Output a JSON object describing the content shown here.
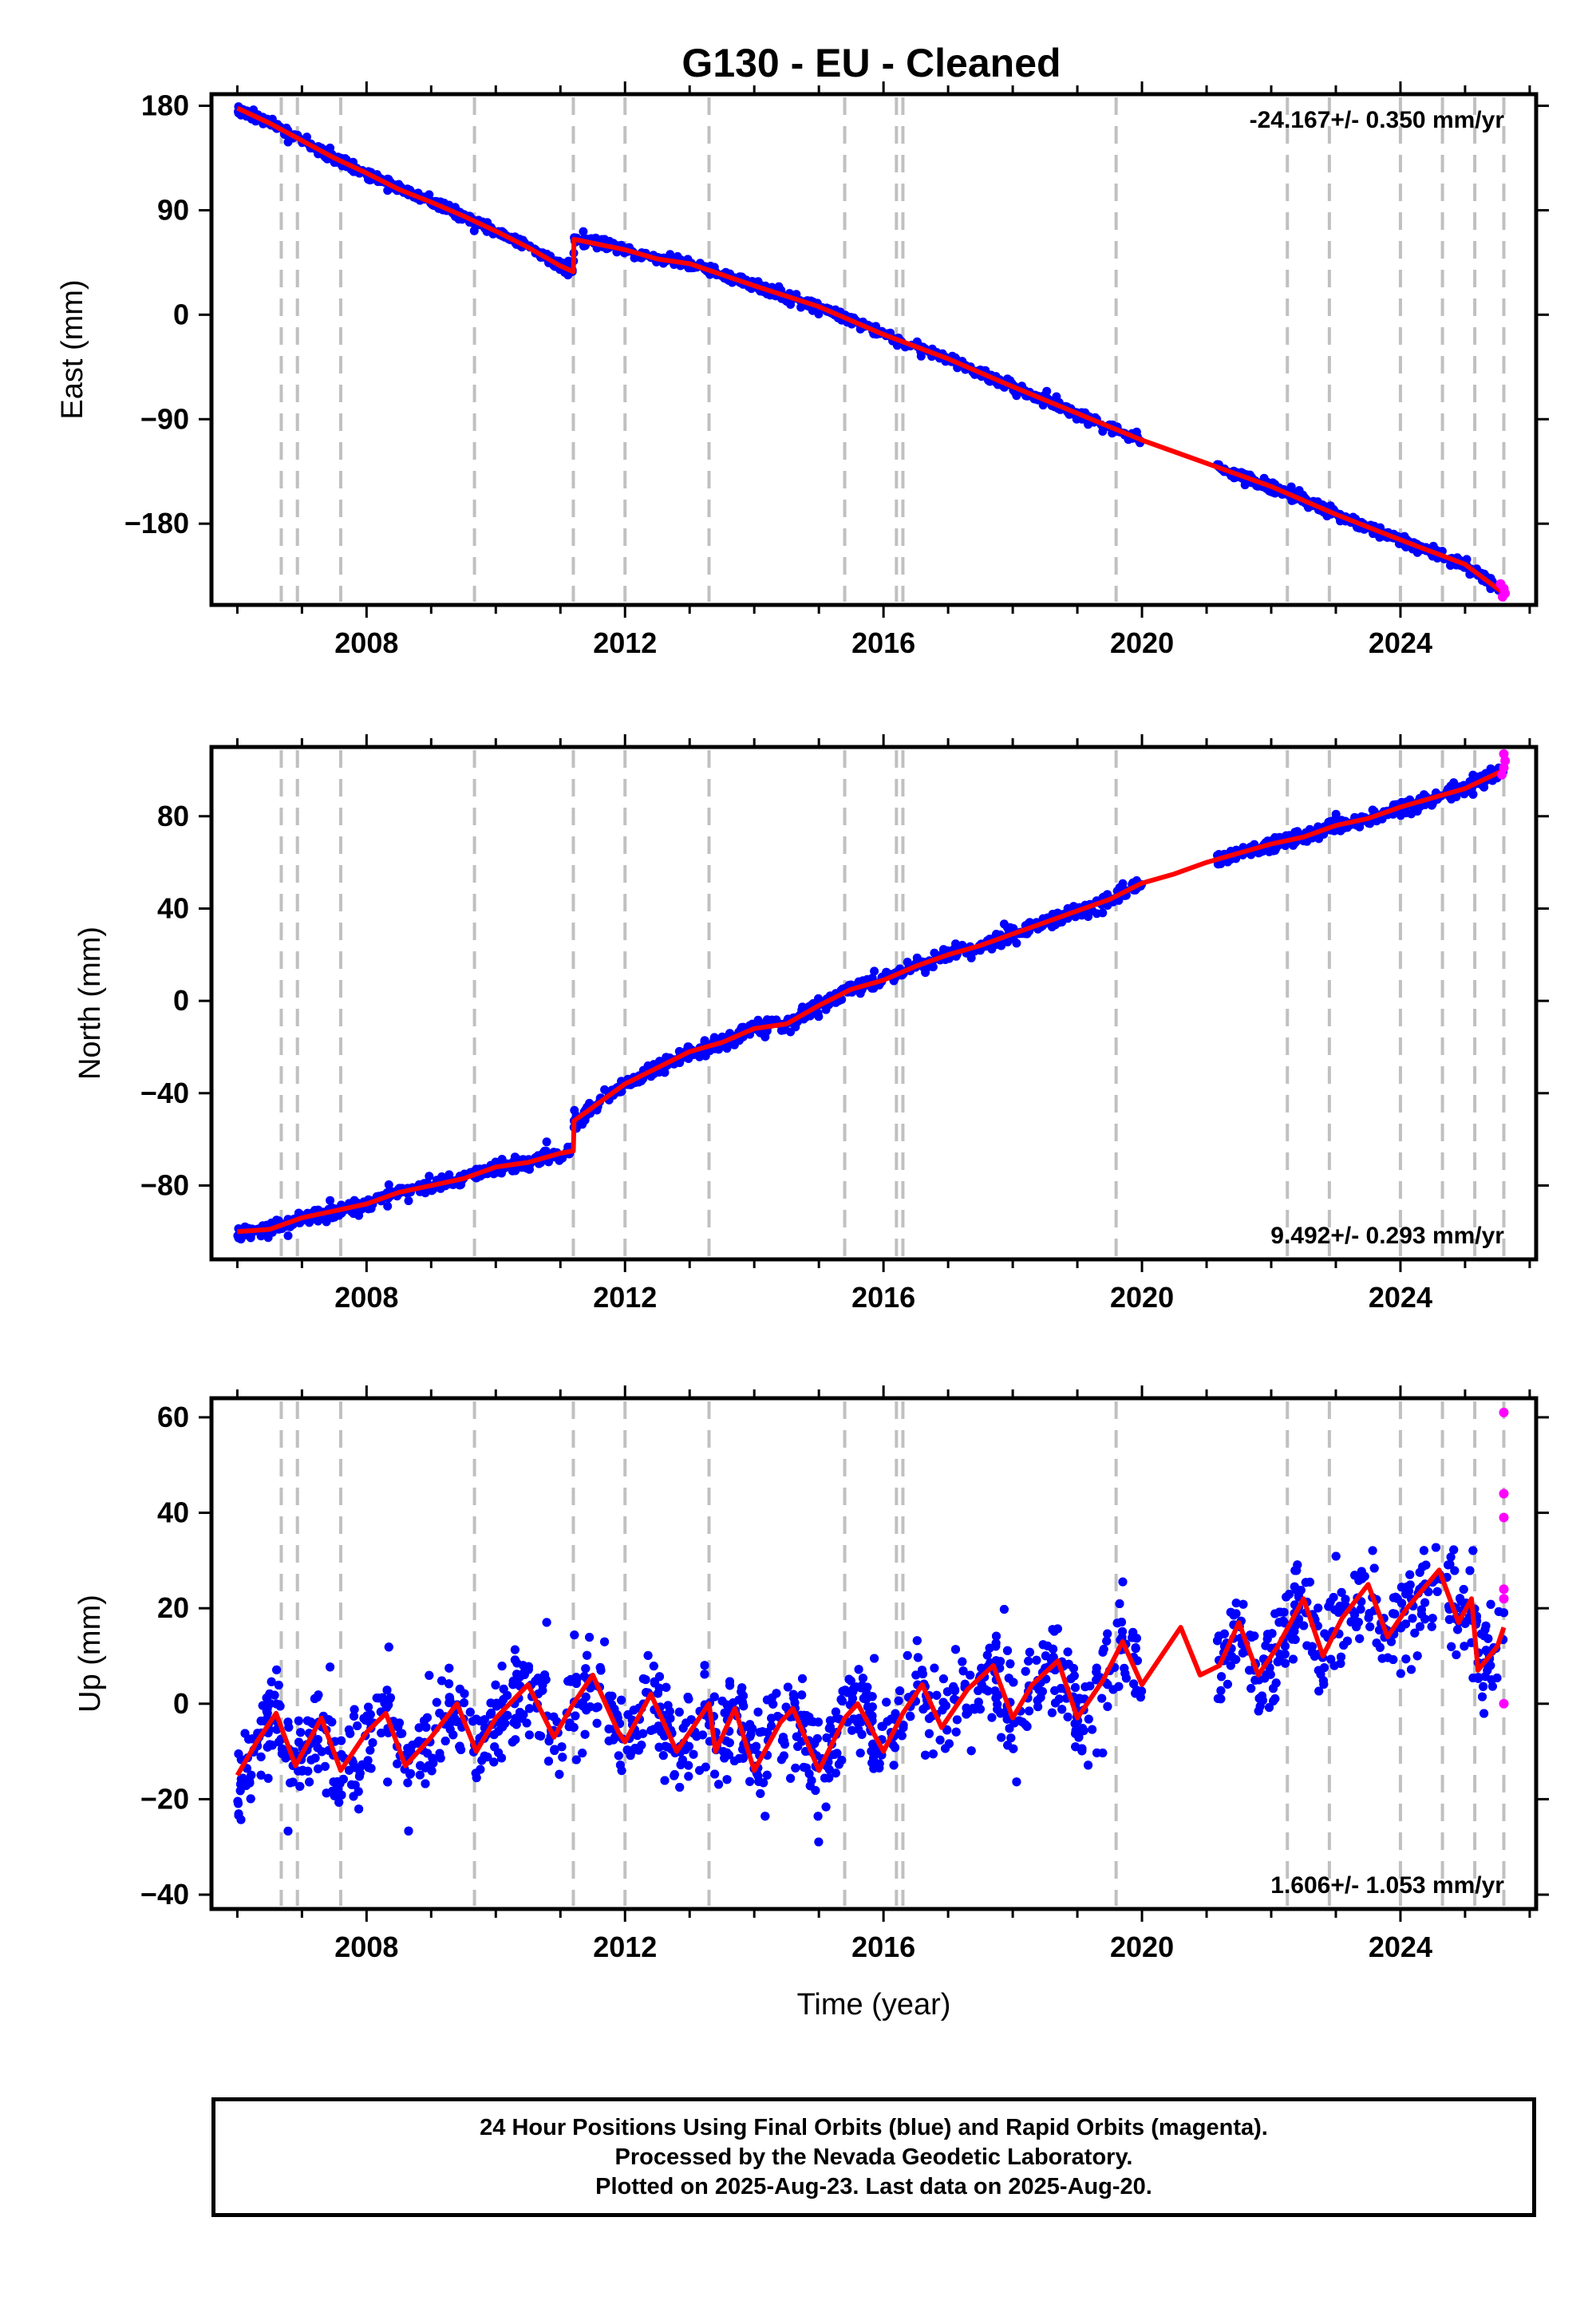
{
  "title": "G130  - EU - Cleaned",
  "colors": {
    "final": "#0000ff",
    "rapid": "#ff00ff",
    "model": "#ff0000",
    "steps": "#c0c0c0"
  },
  "footer": {
    "line1": "24 Hour Positions Using Final Orbits (blue) and Rapid Orbits (magenta).",
    "line2": "Processed by the Nevada Geodetic Laboratory.",
    "line3": "Plotted on 2025-Aug-23. Last data on 2025-Aug-20."
  },
  "chart_data": [
    {
      "type": "scatter",
      "component": "East",
      "ylabel": "East (mm)",
      "xlabel": "",
      "xlim": [
        2005.6,
        2026.1
      ],
      "ylim": [
        -250,
        190
      ],
      "yticks": [
        180,
        90,
        0,
        -90,
        -180
      ],
      "ytick_labels": [
        "180",
        "90",
        "0",
        "−90",
        "−180"
      ],
      "xticks": [
        2008,
        2012,
        2016,
        2020,
        2024
      ],
      "xtick_labels": [
        "2008",
        "2012",
        "2016",
        "2020",
        "2024"
      ],
      "rate": "-24.167+/- 0.350 mm/yr",
      "rate_position": "top-right",
      "steps": [
        2006.68,
        2006.93,
        2007.6,
        2009.67,
        2011.2,
        2012.0,
        2013.3,
        2015.4,
        2016.2,
        2016.3,
        2019.6,
        2022.25,
        2022.9,
        2024.0,
        2024.65,
        2025.15,
        2025.6
      ],
      "model": [
        [
          2006.0,
          178
        ],
        [
          2006.5,
          165
        ],
        [
          2007.0,
          150
        ],
        [
          2007.5,
          135
        ],
        [
          2008.0,
          122
        ],
        [
          2008.5,
          108
        ],
        [
          2009.0,
          97
        ],
        [
          2009.5,
          85
        ],
        [
          2010.0,
          72
        ],
        [
          2010.5,
          58
        ],
        [
          2011.0,
          42
        ],
        [
          2011.2,
          37
        ],
        [
          2011.21,
          65
        ],
        [
          2012.0,
          56
        ],
        [
          2012.5,
          48
        ],
        [
          2013.0,
          44
        ],
        [
          2014.0,
          25
        ],
        [
          2015.0,
          7
        ],
        [
          2016.0,
          -17
        ],
        [
          2017.0,
          -38
        ],
        [
          2018.0,
          -62
        ],
        [
          2019.0,
          -85
        ],
        [
          2020.0,
          -108
        ],
        [
          2021.0,
          -128
        ],
        [
          2022.0,
          -148
        ],
        [
          2023.0,
          -172
        ],
        [
          2024.0,
          -194
        ],
        [
          2025.0,
          -215
        ],
        [
          2025.6,
          -240
        ]
      ],
      "data_range": [
        2006.0,
        2025.6
      ],
      "gap": [
        2020.0,
        2021.15
      ],
      "noise": 3,
      "point_count": 1400,
      "rapid": [
        [
          2025.55,
          -232
        ],
        [
          2025.6,
          -236
        ],
        [
          2025.62,
          -240
        ],
        [
          2025.58,
          -243
        ]
      ]
    },
    {
      "type": "scatter",
      "component": "North",
      "ylabel": "North (mm)",
      "xlabel": "",
      "xlim": [
        2005.6,
        2026.1
      ],
      "ylim": [
        -112,
        110
      ],
      "yticks": [
        80,
        40,
        0,
        -40,
        -80
      ],
      "ytick_labels": [
        "80",
        "40",
        "0",
        "−40",
        "−80"
      ],
      "xticks": [
        2008,
        2012,
        2016,
        2020,
        2024
      ],
      "xtick_labels": [
        "2008",
        "2012",
        "2016",
        "2020",
        "2024"
      ],
      "rate": "9.492+/- 0.293 mm/yr",
      "rate_position": "bottom-right",
      "steps": [
        2006.68,
        2006.93,
        2007.6,
        2009.67,
        2011.2,
        2012.0,
        2013.3,
        2015.4,
        2016.2,
        2016.3,
        2019.6,
        2022.25,
        2022.9,
        2024.0,
        2024.65,
        2025.15,
        2025.6
      ],
      "model": [
        [
          2006.0,
          -100
        ],
        [
          2006.5,
          -99
        ],
        [
          2007.0,
          -94
        ],
        [
          2007.5,
          -91
        ],
        [
          2008.0,
          -88
        ],
        [
          2008.5,
          -83
        ],
        [
          2009.0,
          -80
        ],
        [
          2009.5,
          -77
        ],
        [
          2010.0,
          -72
        ],
        [
          2010.5,
          -70
        ],
        [
          2011.0,
          -66
        ],
        [
          2011.2,
          -65
        ],
        [
          2011.21,
          -52
        ],
        [
          2012.0,
          -36
        ],
        [
          2012.5,
          -29
        ],
        [
          2013.0,
          -22
        ],
        [
          2013.5,
          -18
        ],
        [
          2014.0,
          -12
        ],
        [
          2014.5,
          -10
        ],
        [
          2015.0,
          -2
        ],
        [
          2015.5,
          5
        ],
        [
          2016.0,
          9
        ],
        [
          2016.5,
          15
        ],
        [
          2017.0,
          20
        ],
        [
          2017.5,
          24
        ],
        [
          2018.0,
          29
        ],
        [
          2018.5,
          34
        ],
        [
          2019.0,
          39
        ],
        [
          2019.5,
          44
        ],
        [
          2020.0,
          51
        ],
        [
          2020.5,
          55
        ],
        [
          2021.0,
          60
        ],
        [
          2021.5,
          64
        ],
        [
          2022.0,
          68
        ],
        [
          2022.5,
          71
        ],
        [
          2023.0,
          76
        ],
        [
          2023.5,
          79
        ],
        [
          2024.0,
          84
        ],
        [
          2024.5,
          88
        ],
        [
          2025.0,
          92
        ],
        [
          2025.6,
          100
        ]
      ],
      "data_range": [
        2006.0,
        2025.6
      ],
      "gap": [
        2020.0,
        2021.15
      ],
      "noise": 2.2,
      "point_count": 1400,
      "rapid": [
        [
          2025.57,
          98
        ],
        [
          2025.6,
          101
        ],
        [
          2025.62,
          104
        ],
        [
          2025.6,
          107
        ]
      ]
    },
    {
      "type": "scatter",
      "component": "Up",
      "ylabel": "Up (mm)",
      "xlabel": "Time (year)",
      "xlim": [
        2005.6,
        2026.1
      ],
      "ylim": [
        -43,
        64
      ],
      "yticks": [
        60,
        40,
        20,
        0,
        -20,
        -40
      ],
      "ytick_labels": [
        "60",
        "40",
        "20",
        "0",
        "−20",
        "−40"
      ],
      "xticks": [
        2008,
        2012,
        2016,
        2020,
        2024
      ],
      "xtick_labels": [
        "2008",
        "2012",
        "2016",
        "2020",
        "2024"
      ],
      "rate": "1.606+/- 1.053 mm/yr",
      "rate_position": "bottom-right",
      "steps": [
        2006.68,
        2006.93,
        2007.6,
        2009.67,
        2011.2,
        2012.0,
        2013.3,
        2015.4,
        2016.2,
        2016.3,
        2019.6,
        2022.25,
        2022.9,
        2024.0,
        2024.65,
        2025.15,
        2025.6
      ],
      "model": [
        [
          2006.0,
          -15
        ],
        [
          2006.3,
          -8
        ],
        [
          2006.6,
          -2
        ],
        [
          2006.9,
          -13
        ],
        [
          2007.3,
          -3
        ],
        [
          2007.6,
          -14
        ],
        [
          2008.0,
          -6
        ],
        [
          2008.3,
          -2
        ],
        [
          2008.6,
          -13
        ],
        [
          2009.0,
          -7
        ],
        [
          2009.4,
          0
        ],
        [
          2009.7,
          -10
        ],
        [
          2010.0,
          -3
        ],
        [
          2010.5,
          4
        ],
        [
          2010.9,
          -7
        ],
        [
          2011.2,
          0
        ],
        [
          2011.5,
          6
        ],
        [
          2011.9,
          -6
        ],
        [
          2012.0,
          -8
        ],
        [
          2012.4,
          2
        ],
        [
          2012.8,
          -10
        ],
        [
          2013.0,
          -6
        ],
        [
          2013.3,
          0
        ],
        [
          2013.4,
          -10
        ],
        [
          2013.7,
          -1
        ],
        [
          2014.0,
          -14
        ],
        [
          2014.4,
          -4
        ],
        [
          2014.6,
          -1
        ],
        [
          2015.0,
          -14
        ],
        [
          2015.4,
          -3
        ],
        [
          2015.6,
          0
        ],
        [
          2016.0,
          -10
        ],
        [
          2016.3,
          -2
        ],
        [
          2016.6,
          4
        ],
        [
          2016.9,
          -5
        ],
        [
          2017.3,
          3
        ],
        [
          2017.7,
          8
        ],
        [
          2018.0,
          -3
        ],
        [
          2018.3,
          4
        ],
        [
          2018.7,
          9
        ],
        [
          2019.0,
          -3
        ],
        [
          2019.4,
          5
        ],
        [
          2019.7,
          13
        ],
        [
          2020.0,
          4
        ],
        [
          2020.3,
          10
        ],
        [
          2020.6,
          16
        ],
        [
          2020.9,
          6
        ],
        [
          2021.2,
          8
        ],
        [
          2021.5,
          17
        ],
        [
          2021.8,
          6
        ],
        [
          2022.1,
          12
        ],
        [
          2022.5,
          22
        ],
        [
          2022.8,
          10
        ],
        [
          2023.1,
          18
        ],
        [
          2023.5,
          25
        ],
        [
          2023.8,
          14
        ],
        [
          2024.1,
          20
        ],
        [
          2024.6,
          28
        ],
        [
          2024.9,
          17
        ],
        [
          2025.1,
          22
        ],
        [
          2025.2,
          7
        ],
        [
          2025.5,
          12
        ],
        [
          2025.6,
          16
        ]
      ],
      "data_range": [
        2006.0,
        2025.6
      ],
      "gap": [
        2020.0,
        2021.15
      ],
      "noise": 7,
      "point_count": 4200,
      "rapid": [
        [
          2025.6,
          61
        ],
        [
          2025.6,
          44
        ],
        [
          2025.6,
          39
        ],
        [
          2025.6,
          24
        ],
        [
          2025.6,
          22
        ],
        [
          2025.6,
          0
        ]
      ]
    }
  ]
}
